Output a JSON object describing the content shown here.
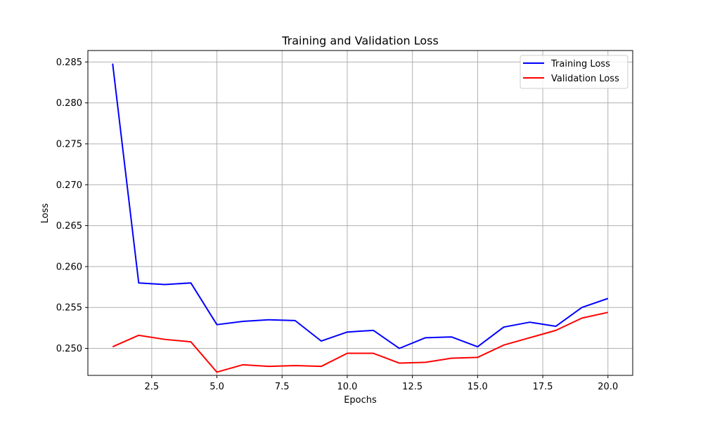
{
  "chart_data": {
    "type": "line",
    "title": "Training and Validation Loss",
    "xlabel": "Epochs",
    "ylabel": "Loss",
    "xlim": [
      0.05,
      20.95
    ],
    "ylim": [
      0.2467,
      0.2864
    ],
    "grid": true,
    "legend_position": "top-right",
    "x_ticks": [
      2.5,
      5.0,
      7.5,
      10.0,
      12.5,
      15.0,
      17.5,
      20.0
    ],
    "x_tick_labels": [
      "2.5",
      "5.0",
      "7.5",
      "10.0",
      "12.5",
      "15.0",
      "17.5",
      "20.0"
    ],
    "y_ticks": [
      0.25,
      0.255,
      0.26,
      0.265,
      0.27,
      0.275,
      0.28,
      0.285
    ],
    "y_tick_labels": [
      "0.250",
      "0.255",
      "0.260",
      "0.265",
      "0.270",
      "0.275",
      "0.280",
      "0.285"
    ],
    "x": [
      1,
      2,
      3,
      4,
      5,
      6,
      7,
      8,
      9,
      10,
      11,
      12,
      13,
      14,
      15,
      16,
      17,
      18,
      19,
      20
    ],
    "series": [
      {
        "name": "Training Loss",
        "color": "#0000ff",
        "values": [
          0.2848,
          0.258,
          0.2578,
          0.258,
          0.2529,
          0.2533,
          0.2535,
          0.2534,
          0.2509,
          0.252,
          0.2522,
          0.25,
          0.2513,
          0.2514,
          0.2502,
          0.2526,
          0.2532,
          0.2527,
          0.255,
          0.2561
        ]
      },
      {
        "name": "Validation Loss",
        "color": "#ff0000",
        "values": [
          0.2502,
          0.2516,
          0.2511,
          0.2508,
          0.2471,
          0.248,
          0.2478,
          0.2479,
          0.2478,
          0.2494,
          0.2494,
          0.2482,
          0.2483,
          0.2488,
          0.2489,
          0.2504,
          0.2513,
          0.2522,
          0.2537,
          0.2544
        ]
      }
    ]
  }
}
